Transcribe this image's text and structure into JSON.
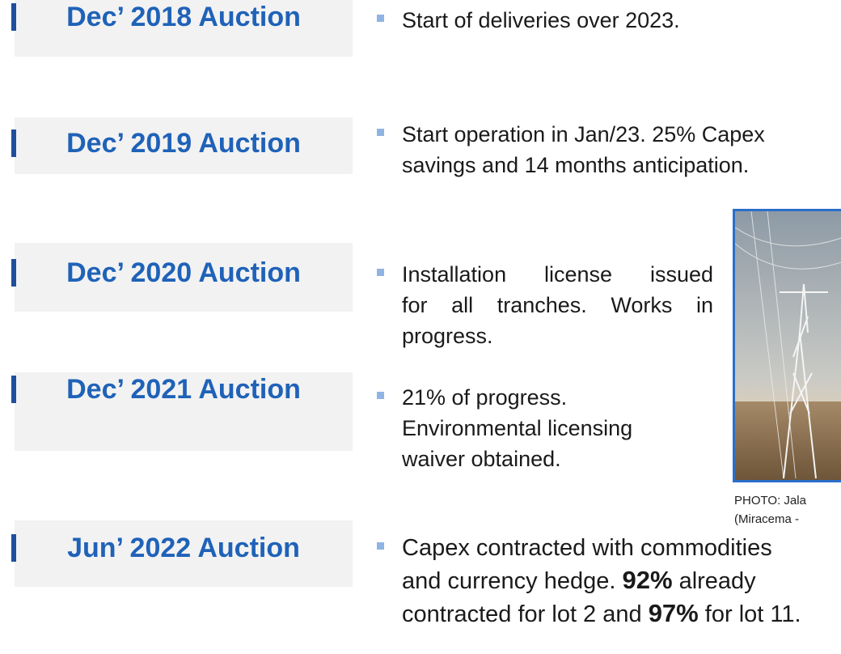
{
  "rows": [
    {
      "label": "Dec’ 2018 Auction",
      "lines": [
        [
          "Start of deliveries over 2023."
        ]
      ]
    },
    {
      "label": "Dec’ 2019 Auction",
      "lines": [
        [
          "Start operation in Jan/23. 25% Capex"
        ],
        [
          "savings and 14 months anticipation."
        ]
      ]
    },
    {
      "label": "Dec’ 2020 Auction",
      "justify": true,
      "lines": [
        [
          "Installation license issued"
        ],
        [
          "for all tranches. Works in"
        ],
        [
          "progress."
        ]
      ]
    },
    {
      "label": "Dec’ 2021 Auction",
      "lines": [
        [
          "21% of progress."
        ],
        [
          "Environmental licensing"
        ],
        [
          "waiver obtained."
        ]
      ]
    },
    {
      "label": "Jun’ 2022 Auction",
      "lines": [
        [
          "Capex contracted with commodities"
        ],
        [
          "and currency hedge. ",
          {
            "text": "92%",
            "bold": true
          },
          " already"
        ],
        [
          "contracted for lot 2 and ",
          {
            "text": "97%",
            "bold": true
          },
          " for lot 11."
        ]
      ]
    }
  ],
  "photo": {
    "caption": [
      "PHOTO: Jala",
      "(Miracema -"
    ]
  }
}
